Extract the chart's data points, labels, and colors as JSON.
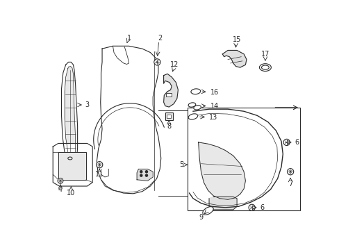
{
  "background_color": "#ffffff",
  "line_color": "#2a2a2a",
  "line_width": 0.8,
  "fig_w": 4.89,
  "fig_h": 3.6,
  "dpi": 100
}
